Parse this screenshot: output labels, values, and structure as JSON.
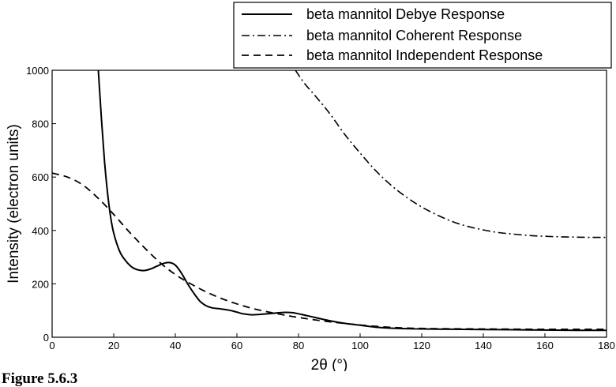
{
  "caption": "Figure 5.6.3",
  "chart_data": {
    "type": "line",
    "title": "",
    "xlabel": "2θ (°)",
    "ylabel": "Intensity (electron units)",
    "xlim": [
      0,
      180
    ],
    "ylim": [
      0,
      1000
    ],
    "xticks": [
      0,
      20,
      40,
      60,
      80,
      100,
      120,
      140,
      160,
      180
    ],
    "yticks": [
      0,
      200,
      400,
      600,
      800,
      1000
    ],
    "grid": false,
    "legend": "top-right, above plot",
    "series": [
      {
        "name": "beta mannitol Debye Response",
        "style": "solid",
        "x": [
          15,
          16,
          17,
          18,
          19,
          20,
          22,
          24,
          26,
          28,
          30,
          32,
          34,
          36,
          38,
          40,
          42,
          44,
          46,
          48,
          50,
          52,
          55,
          58,
          60,
          62,
          65,
          68,
          70,
          72,
          75,
          78,
          80,
          85,
          90,
          95,
          100,
          105,
          110,
          120,
          130,
          140,
          150,
          160,
          170,
          180
        ],
        "y": [
          1000,
          820,
          660,
          540,
          450,
          390,
          320,
          285,
          262,
          252,
          250,
          256,
          266,
          276,
          280,
          270,
          240,
          200,
          165,
          135,
          118,
          110,
          106,
          100,
          94,
          88,
          84,
          86,
          88,
          90,
          93,
          92,
          88,
          75,
          62,
          52,
          45,
          38,
          34,
          31,
          30,
          29,
          28,
          27,
          26,
          26
        ]
      },
      {
        "name": "beta mannitol Coherent Response",
        "style": "dashdot",
        "x": [
          79,
          82,
          85,
          90,
          95,
          100,
          105,
          110,
          115,
          120,
          125,
          130,
          135,
          140,
          145,
          150,
          155,
          160,
          165,
          170,
          175,
          180
        ],
        "y": [
          1000,
          950,
          910,
          840,
          760,
          690,
          625,
          570,
          525,
          488,
          458,
          433,
          415,
          402,
          392,
          386,
          381,
          378,
          376,
          375,
          374,
          374
        ]
      },
      {
        "name": "beta mannitol Independent Response",
        "style": "dashed",
        "x": [
          0,
          5,
          10,
          15,
          20,
          25,
          30,
          35,
          40,
          45,
          50,
          55,
          60,
          65,
          70,
          75,
          80,
          90,
          100,
          110,
          120,
          140,
          160,
          180
        ],
        "y": [
          615,
          600,
          570,
          520,
          460,
          395,
          335,
          280,
          235,
          200,
          170,
          145,
          125,
          108,
          95,
          84,
          74,
          58,
          46,
          37,
          33,
          31,
          30,
          30
        ]
      }
    ]
  }
}
